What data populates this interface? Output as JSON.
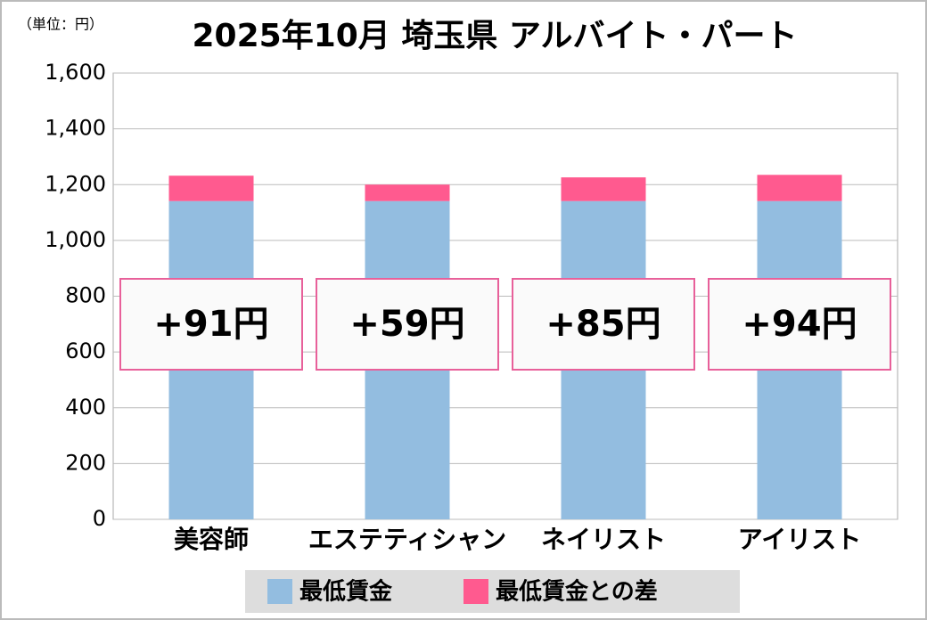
{
  "chart_data": {
    "type": "bar",
    "stacked": true,
    "title": "2025年10月 埼玉県 アルバイト・パート",
    "unit_label": "（単位：円）",
    "categories": [
      "美容師",
      "エステティシャン",
      "ネイリスト",
      "アイリスト"
    ],
    "series": [
      {
        "name": "最低賃金",
        "color": "#93bde0",
        "values": [
          1141,
          1141,
          1141,
          1141
        ]
      },
      {
        "name": "最低賃金との差",
        "color": "#ff5a8f",
        "values": [
          91,
          59,
          85,
          94
        ],
        "value_labels": [
          "+91円",
          "+59円",
          "+85円",
          "+94円"
        ]
      }
    ],
    "ylim": [
      0,
      1600
    ],
    "yticks": [
      0,
      200,
      400,
      600,
      800,
      {
        "value": 1000,
        "label": "1,000"
      },
      {
        "value": 1200,
        "label": "1,200"
      },
      {
        "value": 1400,
        "label": "1,400"
      },
      {
        "value": 1600,
        "label": "1,600"
      }
    ],
    "grid": true
  }
}
